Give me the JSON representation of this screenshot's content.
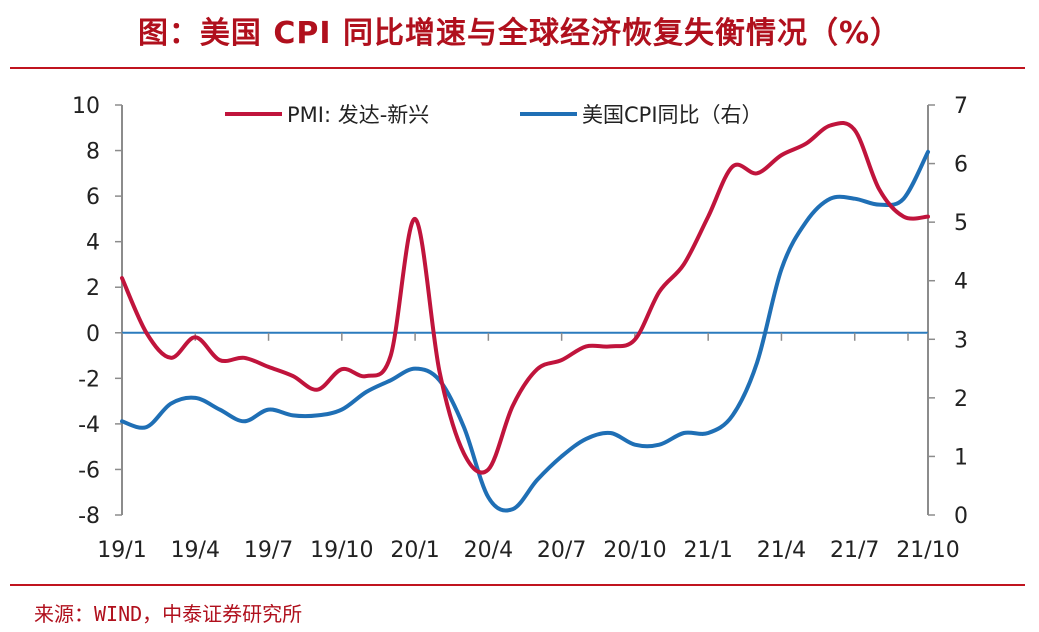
{
  "title": "图：美国 CPI 同比增速与全球经济恢复失衡情况（%）",
  "source": "来源：WIND，中泰证券研究所",
  "colors": {
    "title": "#b0101d",
    "rule": "#c0141f",
    "pmi_line": "#c0143c",
    "cpi_line": "#1f6fb5",
    "axis": "#8c8c8c",
    "zero_line": "#2b7bbd"
  },
  "chart_data": {
    "type": "line",
    "title": "美国 CPI 同比增速与全球经济恢复失衡情况（%）",
    "categories": [
      "19/1",
      "19/2",
      "19/3",
      "19/4",
      "19/5",
      "19/6",
      "19/7",
      "19/8",
      "19/9",
      "19/10",
      "19/11",
      "19/12",
      "20/1",
      "20/2",
      "20/3",
      "20/4",
      "20/5",
      "20/6",
      "20/7",
      "20/8",
      "20/9",
      "20/10",
      "20/11",
      "20/12",
      "21/1",
      "21/2",
      "21/3",
      "21/4",
      "21/5",
      "21/6",
      "21/7",
      "21/8",
      "21/9",
      "21/10"
    ],
    "x_tick_labels": [
      "19/1",
      "19/4",
      "19/7",
      "19/10",
      "20/1",
      "20/4",
      "20/7",
      "20/10",
      "21/1",
      "21/4",
      "21/7",
      "21/10"
    ],
    "y_left": {
      "min": -8,
      "max": 10,
      "ticks": [
        -8,
        -6,
        -4,
        -2,
        0,
        2,
        4,
        6,
        8,
        10
      ]
    },
    "y_right": {
      "min": 0,
      "max": 7,
      "ticks": [
        0,
        1,
        2,
        3,
        4,
        5,
        6,
        7
      ]
    },
    "grid": false,
    "legend_position": "top",
    "series": [
      {
        "name": "PMI：发达-新兴",
        "axis": "left",
        "values": [
          2.4,
          0.0,
          -1.1,
          -0.2,
          -1.2,
          -1.1,
          -1.5,
          -1.9,
          -2.5,
          -1.6,
          -1.9,
          -1.0,
          5.0,
          -1.7,
          -5.3,
          -6.0,
          -3.2,
          -1.6,
          -1.2,
          -0.6,
          -0.6,
          -0.3,
          1.8,
          3.0,
          5.1,
          7.3,
          7.0,
          7.8,
          8.3,
          9.1,
          8.9,
          6.3,
          5.1,
          5.1
        ]
      },
      {
        "name": "美国CPI同比（右）",
        "axis": "right",
        "values": [
          1.6,
          1.5,
          1.9,
          2.0,
          1.8,
          1.6,
          1.8,
          1.7,
          1.7,
          1.8,
          2.1,
          2.3,
          2.5,
          2.3,
          1.5,
          0.3,
          0.1,
          0.6,
          1.0,
          1.3,
          1.4,
          1.2,
          1.2,
          1.4,
          1.4,
          1.7,
          2.6,
          4.2,
          5.0,
          5.4,
          5.4,
          5.3,
          5.4,
          6.2
        ]
      }
    ]
  }
}
